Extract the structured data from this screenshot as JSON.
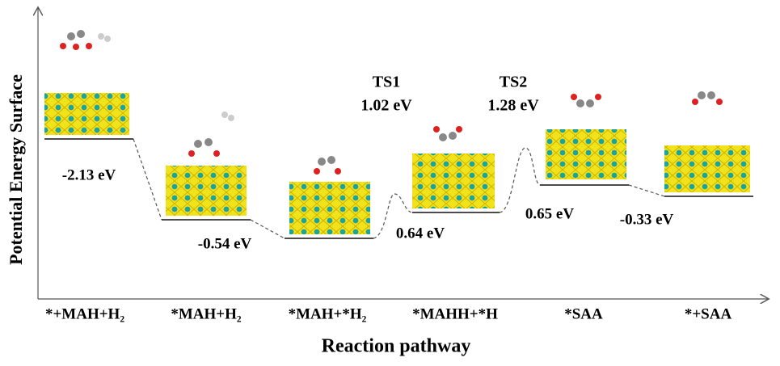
{
  "axis": {
    "y_label": "Potential Energy Surface",
    "x_label": "Reaction pathway"
  },
  "states": [
    "*+MAH+H₂",
    "*MAH+H₂",
    "*MAH+*H₂",
    "*MAHH+*H",
    "*SAA",
    "*+SAA"
  ],
  "energy_labels": [
    "-2.13 eV",
    "-0.54 eV",
    "0.64 eV",
    "0.65 eV",
    "-0.33 eV"
  ],
  "transition_states": [
    {
      "name": "TS1",
      "energy": "1.02 eV"
    },
    {
      "name": "TS2",
      "energy": "1.28 eV"
    }
  ]
}
